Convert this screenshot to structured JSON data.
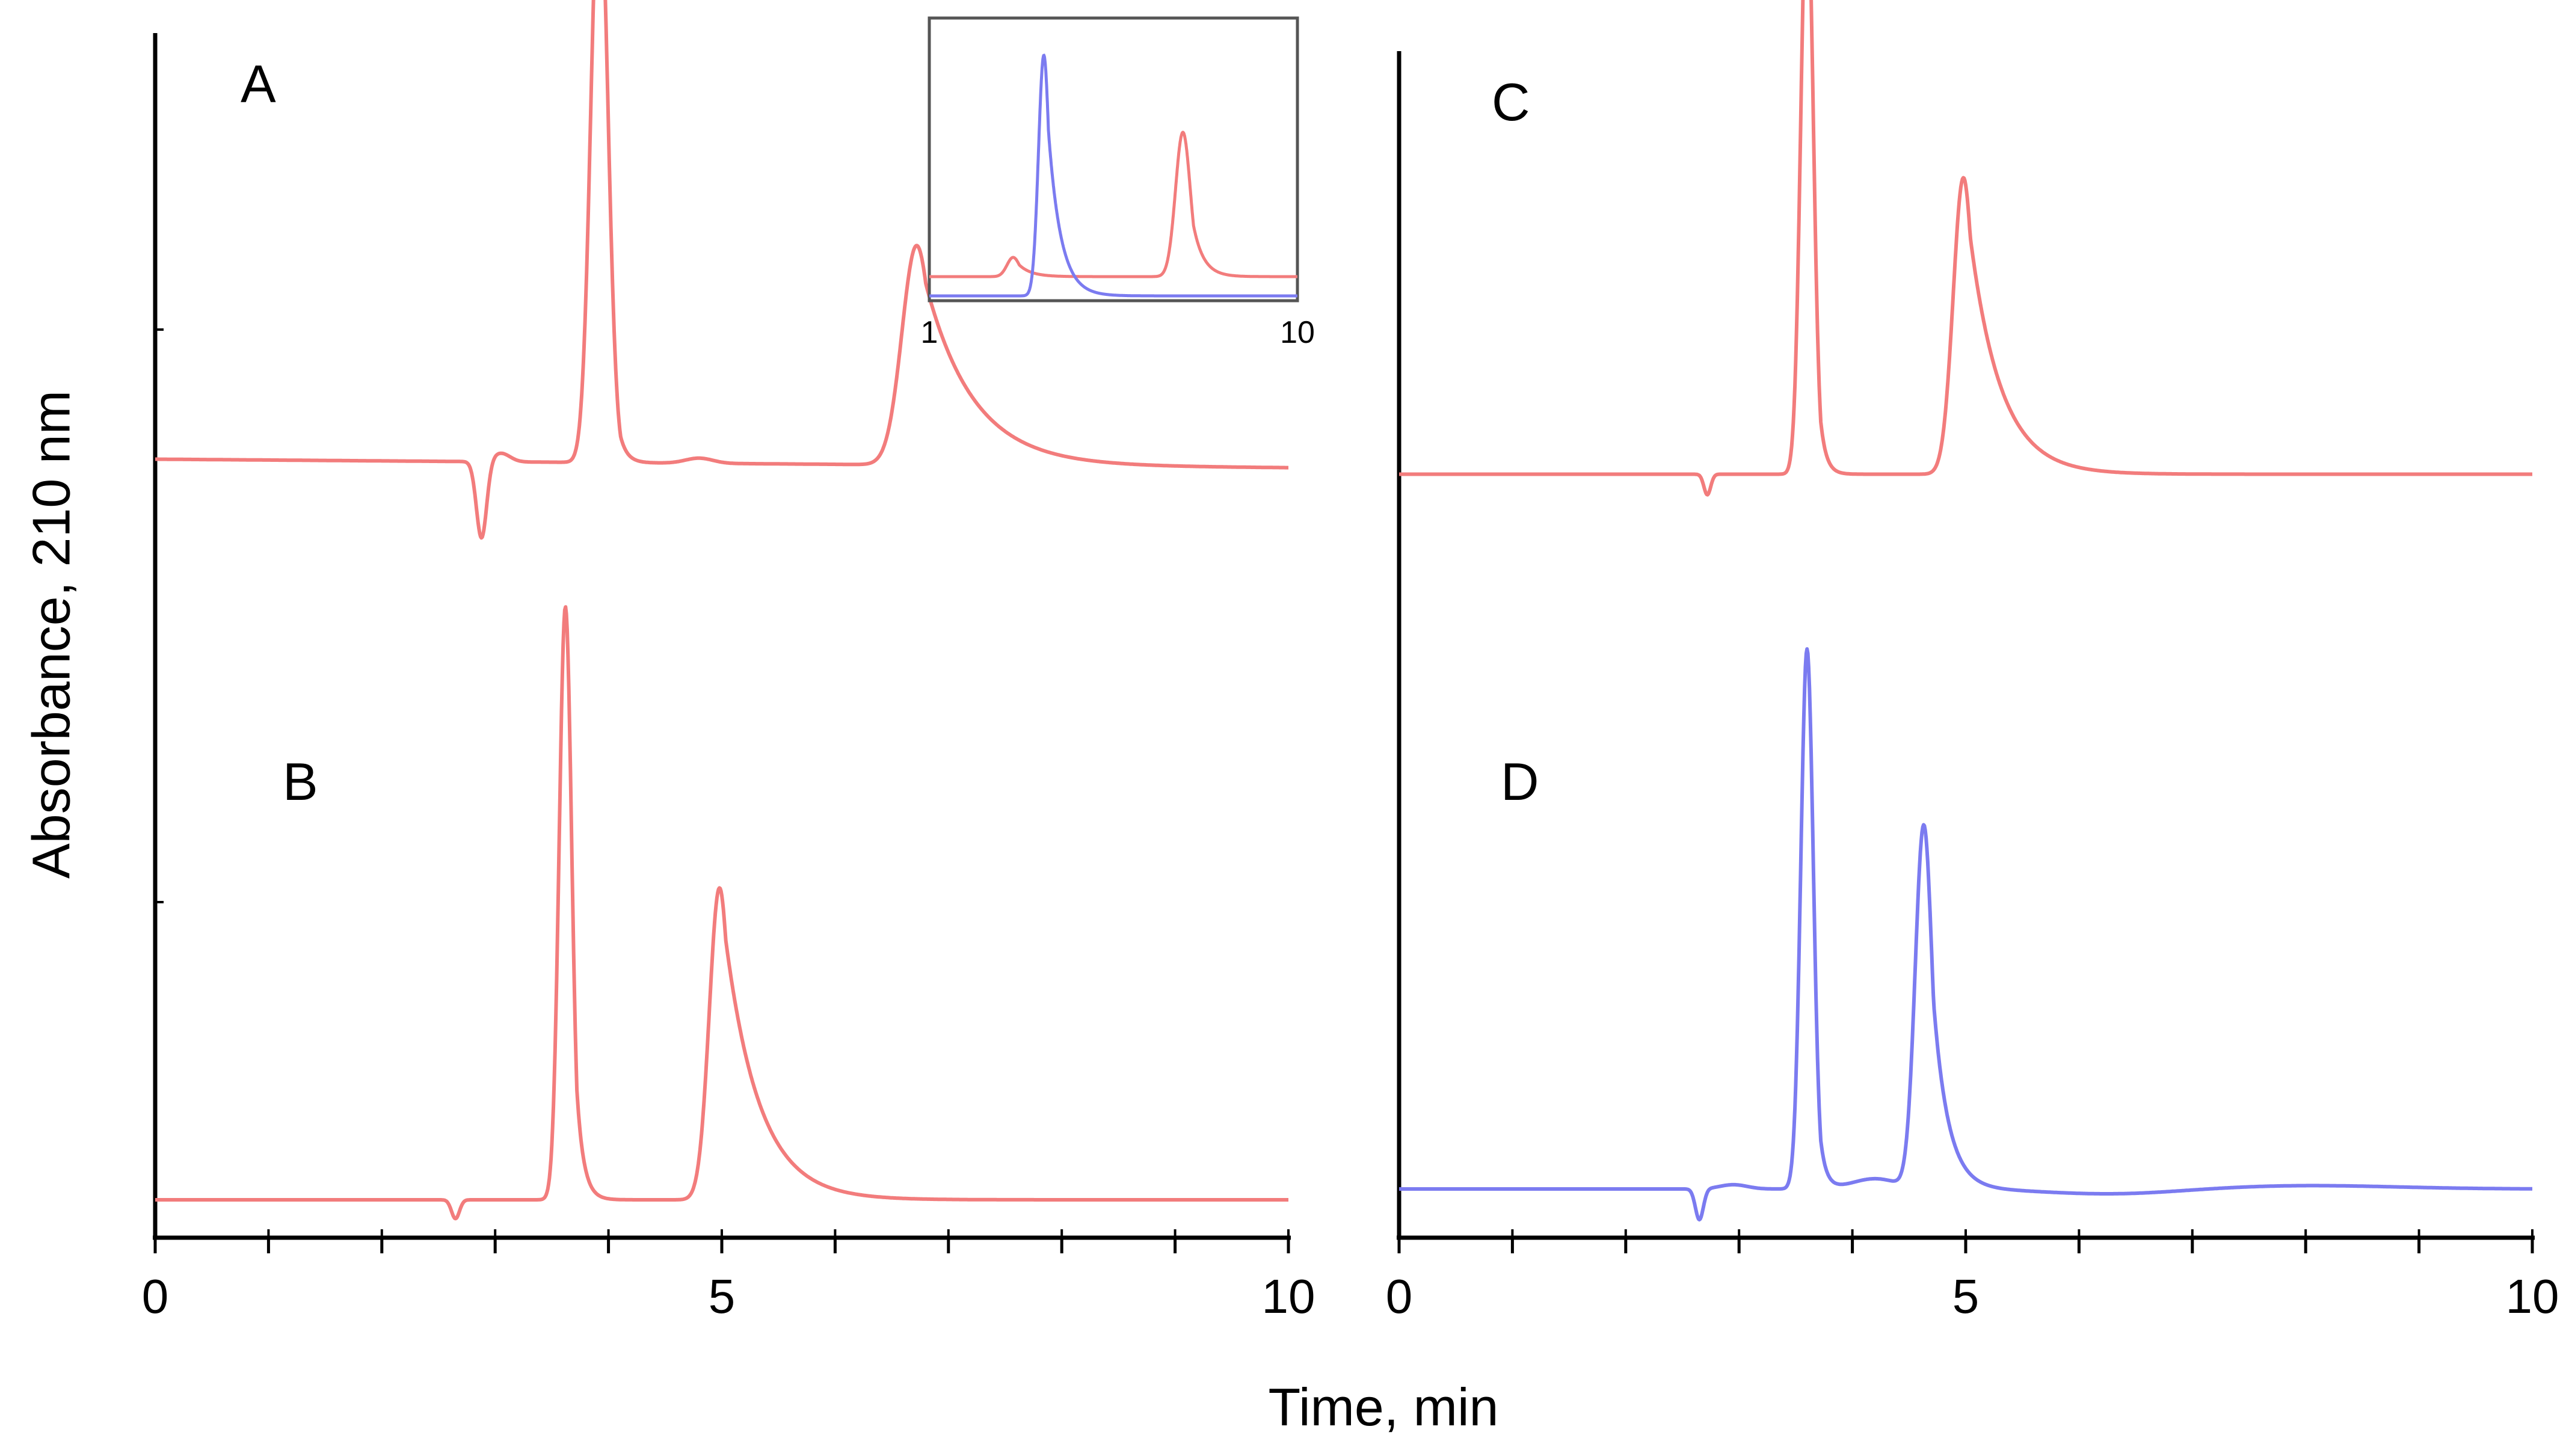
{
  "chart_data": {
    "type": "line",
    "title": "",
    "ylabel": "Absorbance, 210 nm",
    "xlabel": "Time, min",
    "colors": {
      "red": "#f27c7c",
      "blue": "#7b7bf0",
      "axis": "#000000",
      "inset_frame": "#555555"
    },
    "panels": [
      {
        "id": "left",
        "xlim": [
          0,
          10
        ],
        "xticks": [
          0,
          5,
          10
        ],
        "xtick_labels": [
          "0",
          "5",
          "10"
        ],
        "minor_step": 1,
        "traces": [
          {
            "label": "A",
            "color_key": "red",
            "base_start": 0.9,
            "base_end": 0.85,
            "features": [
              {
                "c": 2.88,
                "h": -0.45,
                "s": 0.045
              },
              {
                "c": 3.05,
                "h": 0.05,
                "s": 0.08
              },
              {
                "c": 3.92,
                "h": 3.45,
                "s": 0.075,
                "t": 0.06
              },
              {
                "c": 4.8,
                "h": 0.03,
                "s": 0.12
              },
              {
                "c": 6.72,
                "h": 1.28,
                "s": 0.13,
                "t": 0.42
              }
            ]
          },
          {
            "label": "B",
            "color_key": "red",
            "base_start": 0.0,
            "base_end": 0.0,
            "features": [
              {
                "c": 2.65,
                "h": -0.11,
                "s": 0.035
              },
              {
                "c": 3.62,
                "h": 3.46,
                "s": 0.055,
                "t": 0.06
              },
              {
                "c": 4.98,
                "h": 1.82,
                "s": 0.09,
                "t": 0.3
              }
            ]
          }
        ],
        "inset": {
          "xlim": [
            1,
            10
          ],
          "xtick_labels": [
            "1",
            "10"
          ],
          "traces": [
            {
              "color_key": "red",
              "base_start": 0.08,
              "base_end": 0.08,
              "features": [
                {
                  "c": 3.05,
                  "h": 0.08,
                  "s": 0.15,
                  "t": 0.3
                },
                {
                  "c": 7.2,
                  "h": 0.6,
                  "s": 0.18,
                  "t": 0.25
                }
              ]
            },
            {
              "color_key": "blue",
              "base_start": 0.0,
              "base_end": 0.0,
              "features": [
                {
                  "c": 3.8,
                  "h": 1.0,
                  "s": 0.13,
                  "t": 0.3
                }
              ]
            }
          ]
        }
      },
      {
        "id": "right",
        "xlim": [
          0,
          10
        ],
        "xticks": [
          0,
          5,
          10
        ],
        "xtick_labels": [
          "0",
          "5",
          "10"
        ],
        "minor_step": 1,
        "traces": [
          {
            "label": "C",
            "color_key": "red",
            "base_start": 0.9,
            "base_end": 0.9,
            "features": [
              {
                "c": 2.72,
                "h": -0.12,
                "s": 0.03
              },
              {
                "c": 3.6,
                "h": 3.45,
                "s": 0.055,
                "t": 0.05
              },
              {
                "c": 4.98,
                "h": 1.73,
                "s": 0.09,
                "t": 0.27
              }
            ]
          },
          {
            "label": "D",
            "color_key": "blue",
            "base_start": 0.0,
            "base_end": 0.0,
            "features": [
              {
                "c": 2.65,
                "h": -0.18,
                "s": 0.035
              },
              {
                "c": 2.95,
                "h": 0.025,
                "s": 0.12
              },
              {
                "c": 3.6,
                "h": 3.15,
                "s": 0.055,
                "t": 0.05
              },
              {
                "c": 4.2,
                "h": 0.06,
                "s": 0.2
              },
              {
                "c": 4.63,
                "h": 2.12,
                "s": 0.075,
                "t": 0.13
              },
              {
                "c": 6.3,
                "h": -0.03,
                "s": 0.6
              },
              {
                "c": 8.0,
                "h": 0.02,
                "s": 0.8
              }
            ]
          }
        ]
      }
    ]
  }
}
